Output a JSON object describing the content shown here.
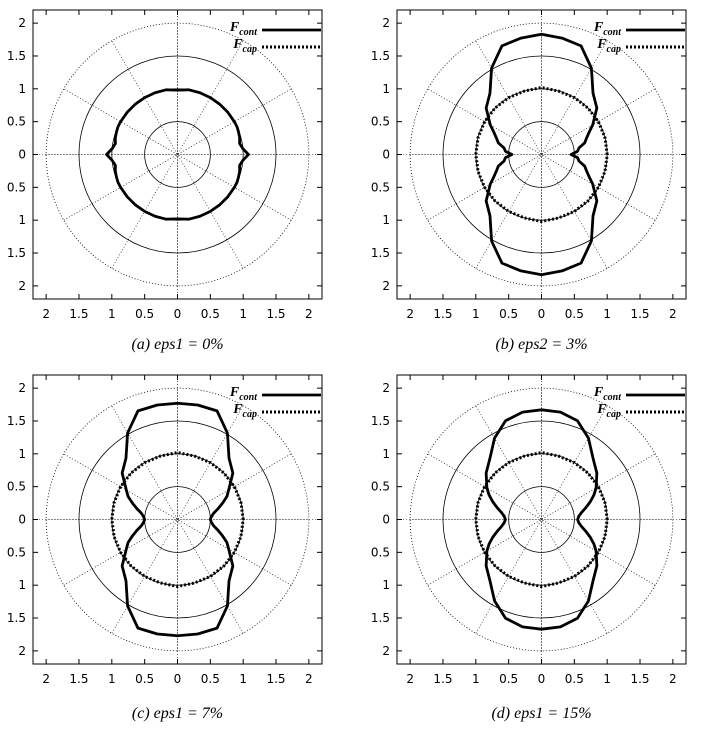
{
  "legend": {
    "cont": {
      "letter": "F",
      "sub": "cont"
    },
    "cap": {
      "letter": "F",
      "sub": "cap"
    }
  },
  "chart_data": [
    {
      "type": "polar",
      "caption": "(a) eps1 = 0%",
      "xticks": [
        "2",
        "1.5",
        "1",
        "0.5",
        "0",
        "0.5",
        "1",
        "1.5",
        "2"
      ],
      "yticks": [
        "2",
        "1.5",
        "1",
        "0.5",
        "0",
        "0.5",
        "1",
        "1.5",
        "2"
      ],
      "rings": [
        0.5,
        1.0,
        1.5,
        2.0
      ],
      "grid": true,
      "legend_position": "top-right",
      "series": [
        {
          "name": "F_cont",
          "style": "solid",
          "angles": [
            0,
            5,
            10,
            15,
            20,
            25,
            30,
            40,
            50,
            60,
            70,
            80,
            90
          ],
          "r": [
            1.08,
            1.0,
            0.96,
            0.98,
            0.99,
            1.0,
            1.0,
            1.0,
            1.0,
            1.0,
            1.0,
            1.0,
            0.98
          ]
        }
      ]
    },
    {
      "type": "polar",
      "caption": "(b) eps2 = 3%",
      "xticks": [
        "2",
        "1.5",
        "1",
        "0.5",
        "0",
        "0.5",
        "1",
        "1.5",
        "2"
      ],
      "yticks": [
        "2",
        "1.5",
        "1",
        "0.5",
        "0",
        "0.5",
        "1",
        "1.5",
        "2"
      ],
      "rings": [
        0.5,
        1.0,
        1.5,
        2.0
      ],
      "grid": true,
      "legend_position": "top-right",
      "series": [
        {
          "name": "F_cont",
          "style": "solid",
          "angles": [
            0,
            5,
            10,
            15,
            20,
            25,
            30,
            40,
            50,
            60,
            70,
            80,
            90
          ],
          "r": [
            0.45,
            0.55,
            0.58,
            0.68,
            0.73,
            0.8,
            0.9,
            1.1,
            1.22,
            1.52,
            1.76,
            1.8,
            1.83
          ]
        },
        {
          "name": "F_cap",
          "style": "dotted",
          "angles": [
            0,
            15,
            30,
            45,
            60,
            75,
            90
          ],
          "r": [
            1.0,
            1.0,
            1.0,
            1.0,
            1.0,
            1.0,
            1.02
          ]
        }
      ]
    },
    {
      "type": "polar",
      "caption": "(c) eps1 = 7%",
      "xticks": [
        "2",
        "1.5",
        "1",
        "0.5",
        "0",
        "0.5",
        "1",
        "1.5",
        "2"
      ],
      "yticks": [
        "2",
        "1.5",
        "1",
        "0.5",
        "0",
        "0.5",
        "1",
        "1.5",
        "2"
      ],
      "rings": [
        0.5,
        1.0,
        1.5,
        2.0
      ],
      "grid": true,
      "legend_position": "top-right",
      "series": [
        {
          "name": "F_cont",
          "style": "solid",
          "angles": [
            0,
            5,
            10,
            15,
            20,
            25,
            30,
            40,
            50,
            60,
            70,
            80,
            90
          ],
          "r": [
            0.5,
            0.52,
            0.56,
            0.64,
            0.73,
            0.83,
            0.9,
            1.1,
            1.22,
            1.52,
            1.76,
            1.77,
            1.77
          ]
        },
        {
          "name": "F_cap",
          "style": "dotted",
          "angles": [
            0,
            15,
            30,
            45,
            60,
            75,
            90
          ],
          "r": [
            1.0,
            1.0,
            1.0,
            1.0,
            1.0,
            1.0,
            1.02
          ]
        }
      ]
    },
    {
      "type": "polar",
      "caption": "(d) eps1 = 15%",
      "xticks": [
        "2",
        "1.5",
        "1",
        "0.5",
        "0",
        "0.5",
        "1",
        "1.5",
        "2"
      ],
      "yticks": [
        "2",
        "1.5",
        "1",
        "0.5",
        "0",
        "0.5",
        "1",
        "1.5",
        "2"
      ],
      "rings": [
        0.5,
        1.0,
        1.5,
        2.0
      ],
      "grid": true,
      "legend_position": "top-right",
      "series": [
        {
          "name": "F_cont",
          "style": "solid",
          "angles": [
            0,
            5,
            10,
            15,
            20,
            25,
            30,
            40,
            50,
            60,
            70,
            80,
            90
          ],
          "r": [
            0.55,
            0.57,
            0.62,
            0.7,
            0.79,
            0.88,
            0.96,
            1.1,
            1.22,
            1.43,
            1.6,
            1.66,
            1.67
          ]
        },
        {
          "name": "F_cap",
          "style": "dotted",
          "angles": [
            0,
            15,
            30,
            45,
            60,
            75,
            90
          ],
          "r": [
            1.0,
            1.0,
            1.0,
            1.0,
            1.0,
            1.0,
            1.02
          ]
        }
      ]
    }
  ]
}
